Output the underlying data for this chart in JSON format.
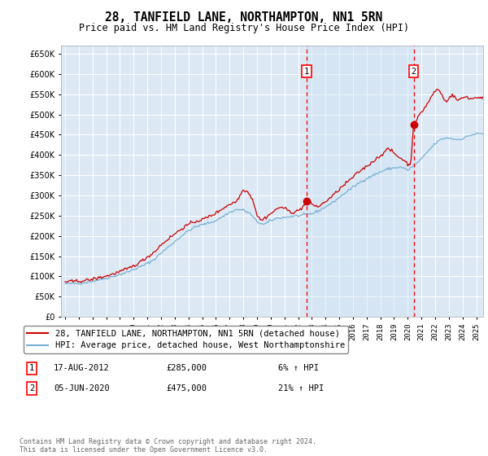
{
  "title": "28, TANFIELD LANE, NORTHAMPTON, NN1 5RN",
  "subtitle": "Price paid vs. HM Land Registry's House Price Index (HPI)",
  "title_fontsize": 10.5,
  "subtitle_fontsize": 8.5,
  "bg_color": "#dce9f5",
  "grid_color": "#ffffff",
  "line1_color": "#cc0000",
  "line2_color": "#7ab0d4",
  "fill_color": "#c8dff0",
  "line1_label": "28, TANFIELD LANE, NORTHAMPTON, NN1 5RN (detached house)",
  "line2_label": "HPI: Average price, detached house, West Northamptonshire",
  "sale1_date_label": "17-AUG-2012",
  "sale1_price_label": "£285,000",
  "sale1_hpi_label": "6% ↑ HPI",
  "sale1_year": 2012.63,
  "sale1_price": 285000,
  "sale2_date_label": "05-JUN-2020",
  "sale2_price_label": "£475,000",
  "sale2_hpi_label": "21% ↑ HPI",
  "sale2_year": 2020.43,
  "sale2_price": 475000,
  "footer": "Contains HM Land Registry data © Crown copyright and database right 2024.\nThis data is licensed under the Open Government Licence v3.0.",
  "ylim": [
    0,
    670000
  ],
  "xlim_start": 1994.7,
  "xlim_end": 2025.5,
  "hpi_anchors": [
    [
      1995.0,
      82000
    ],
    [
      1995.5,
      82500
    ],
    [
      1996.0,
      83000
    ],
    [
      1996.5,
      85000
    ],
    [
      1997.0,
      88000
    ],
    [
      1997.5,
      92000
    ],
    [
      1998.0,
      96000
    ],
    [
      1998.5,
      100000
    ],
    [
      1999.0,
      105000
    ],
    [
      1999.5,
      110000
    ],
    [
      2000.0,
      117000
    ],
    [
      2000.5,
      124000
    ],
    [
      2001.0,
      132000
    ],
    [
      2001.5,
      142000
    ],
    [
      2002.0,
      158000
    ],
    [
      2002.5,
      172000
    ],
    [
      2003.0,
      186000
    ],
    [
      2003.5,
      200000
    ],
    [
      2004.0,
      213000
    ],
    [
      2004.5,
      222000
    ],
    [
      2005.0,
      228000
    ],
    [
      2005.5,
      232000
    ],
    [
      2006.0,
      238000
    ],
    [
      2006.5,
      248000
    ],
    [
      2007.0,
      258000
    ],
    [
      2007.5,
      265000
    ],
    [
      2008.0,
      264000
    ],
    [
      2008.5,
      255000
    ],
    [
      2009.0,
      235000
    ],
    [
      2009.5,
      228000
    ],
    [
      2010.0,
      238000
    ],
    [
      2010.5,
      244000
    ],
    [
      2011.0,
      246000
    ],
    [
      2011.5,
      248000
    ],
    [
      2012.0,
      250000
    ],
    [
      2012.5,
      252000
    ],
    [
      2013.0,
      255000
    ],
    [
      2013.5,
      262000
    ],
    [
      2014.0,
      272000
    ],
    [
      2014.5,
      282000
    ],
    [
      2015.0,
      295000
    ],
    [
      2015.5,
      308000
    ],
    [
      2016.0,
      320000
    ],
    [
      2016.5,
      332000
    ],
    [
      2017.0,
      342000
    ],
    [
      2017.5,
      350000
    ],
    [
      2018.0,
      358000
    ],
    [
      2018.5,
      365000
    ],
    [
      2019.0,
      368000
    ],
    [
      2019.5,
      370000
    ],
    [
      2020.0,
      363000
    ],
    [
      2020.5,
      375000
    ],
    [
      2021.0,
      390000
    ],
    [
      2021.5,
      410000
    ],
    [
      2022.0,
      428000
    ],
    [
      2022.5,
      440000
    ],
    [
      2023.0,
      442000
    ],
    [
      2023.5,
      438000
    ],
    [
      2024.0,
      440000
    ],
    [
      2024.5,
      448000
    ],
    [
      2025.0,
      452000
    ]
  ],
  "price_anchors": [
    [
      1995.0,
      87000
    ],
    [
      1995.5,
      87500
    ],
    [
      1996.0,
      88500
    ],
    [
      1996.5,
      90000
    ],
    [
      1997.0,
      93000
    ],
    [
      1997.5,
      97000
    ],
    [
      1998.0,
      101000
    ],
    [
      1998.5,
      106000
    ],
    [
      1999.0,
      112000
    ],
    [
      1999.5,
      118000
    ],
    [
      2000.0,
      126000
    ],
    [
      2000.5,
      136000
    ],
    [
      2001.0,
      148000
    ],
    [
      2001.5,
      160000
    ],
    [
      2002.0,
      178000
    ],
    [
      2002.5,
      192000
    ],
    [
      2003.0,
      205000
    ],
    [
      2003.5,
      218000
    ],
    [
      2004.0,
      228000
    ],
    [
      2004.5,
      236000
    ],
    [
      2005.0,
      240000
    ],
    [
      2005.5,
      248000
    ],
    [
      2006.0,
      256000
    ],
    [
      2006.5,
      268000
    ],
    [
      2007.0,
      278000
    ],
    [
      2007.5,
      285000
    ],
    [
      2007.9,
      308000
    ],
    [
      2008.0,
      315000
    ],
    [
      2008.3,
      310000
    ],
    [
      2008.7,
      290000
    ],
    [
      2009.0,
      252000
    ],
    [
      2009.3,
      238000
    ],
    [
      2009.6,
      245000
    ],
    [
      2010.0,
      255000
    ],
    [
      2010.4,
      265000
    ],
    [
      2010.7,
      272000
    ],
    [
      2011.0,
      268000
    ],
    [
      2011.3,
      262000
    ],
    [
      2011.6,
      258000
    ],
    [
      2012.0,
      262000
    ],
    [
      2012.3,
      270000
    ],
    [
      2012.63,
      285000
    ],
    [
      2013.0,
      278000
    ],
    [
      2013.5,
      272000
    ],
    [
      2014.0,
      285000
    ],
    [
      2014.5,
      298000
    ],
    [
      2015.0,
      315000
    ],
    [
      2015.5,
      330000
    ],
    [
      2016.0,
      345000
    ],
    [
      2016.5,
      360000
    ],
    [
      2017.0,
      372000
    ],
    [
      2017.5,
      385000
    ],
    [
      2018.0,
      398000
    ],
    [
      2018.3,
      408000
    ],
    [
      2018.6,
      415000
    ],
    [
      2018.9,
      408000
    ],
    [
      2019.2,
      398000
    ],
    [
      2019.5,
      392000
    ],
    [
      2019.8,
      385000
    ],
    [
      2020.0,
      378000
    ],
    [
      2020.2,
      372000
    ],
    [
      2020.43,
      475000
    ],
    [
      2020.6,
      485000
    ],
    [
      2020.9,
      500000
    ],
    [
      2021.2,
      515000
    ],
    [
      2021.5,
      530000
    ],
    [
      2021.8,
      548000
    ],
    [
      2022.0,
      558000
    ],
    [
      2022.2,
      562000
    ],
    [
      2022.4,
      555000
    ],
    [
      2022.6,
      540000
    ],
    [
      2022.8,
      530000
    ],
    [
      2023.0,
      542000
    ],
    [
      2023.3,
      548000
    ],
    [
      2023.6,
      535000
    ],
    [
      2024.0,
      540000
    ],
    [
      2024.3,
      545000
    ],
    [
      2024.6,
      538000
    ],
    [
      2025.0,
      542000
    ]
  ]
}
